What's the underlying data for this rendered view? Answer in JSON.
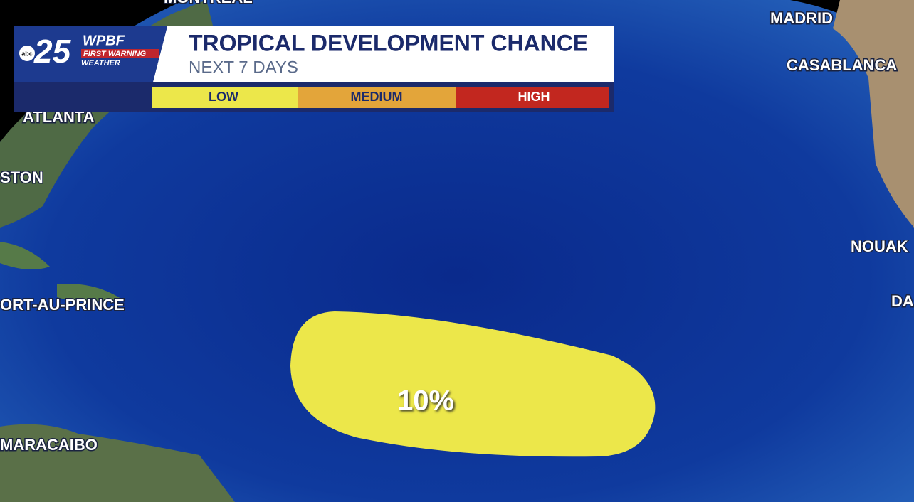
{
  "logo": {
    "network": "abc",
    "channel": "25",
    "station": "WPBF",
    "tagline": "FIRST WARNING",
    "subline": "WEATHER"
  },
  "header": {
    "title": "TROPICAL DEVELOPMENT CHANCE",
    "subtitle": "NEXT 7 DAYS"
  },
  "legend": {
    "low": "LOW",
    "medium": "MEDIUM",
    "high": "HIGH"
  },
  "cities": [
    "MONTREAL",
    "ATLANTA",
    "STON",
    "ORT-AU-PRINCE",
    "MARACAIBO",
    "MADRID",
    "CASABLANCA",
    "NOUAK",
    "DA"
  ],
  "area": {
    "label": "10%"
  }
}
